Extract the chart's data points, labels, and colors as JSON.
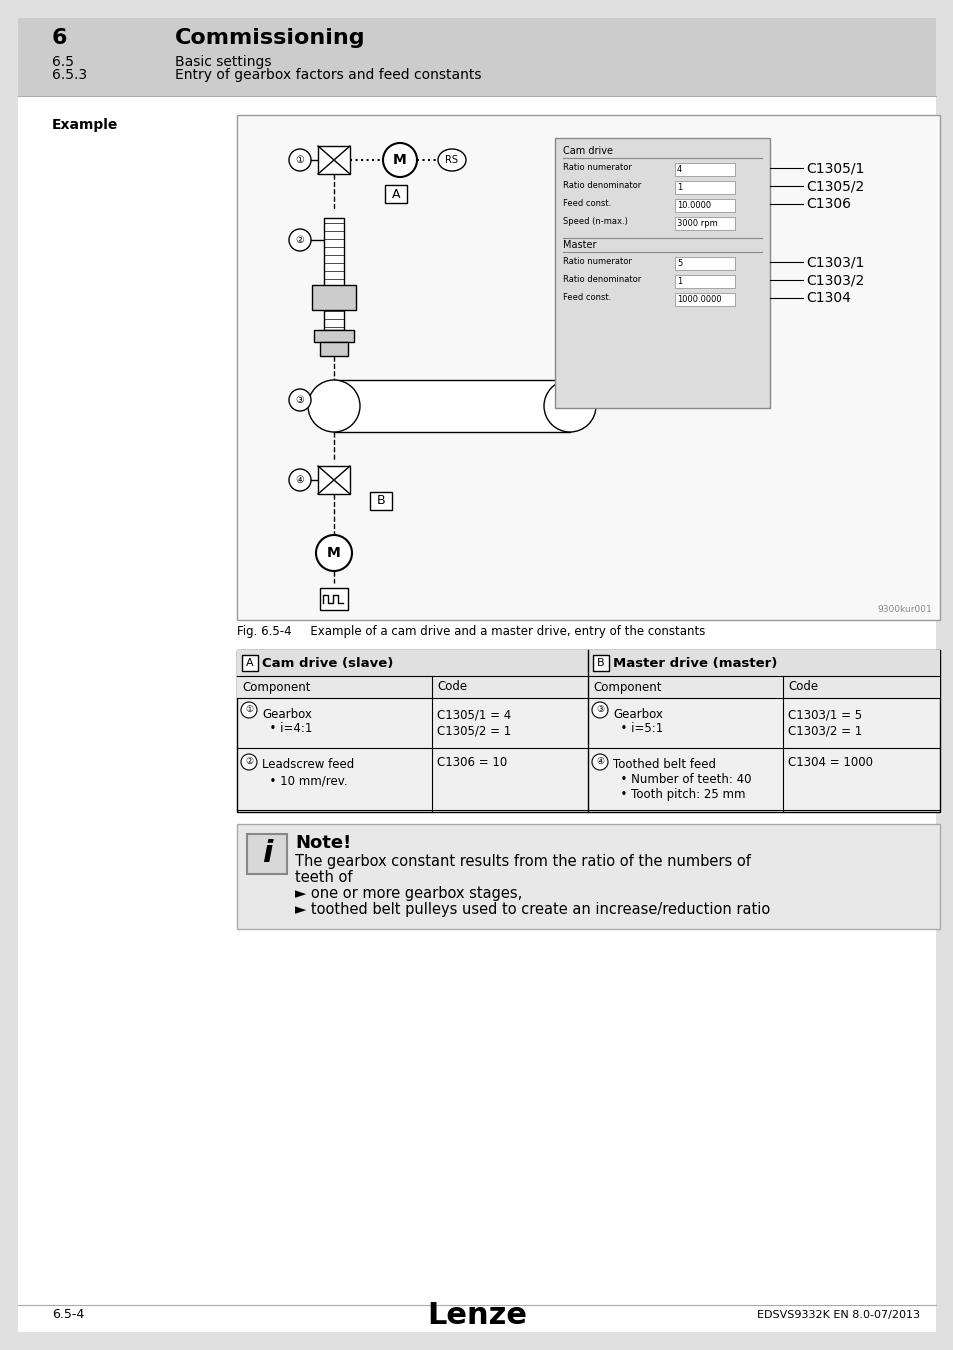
{
  "page_bg": "#e0e0e0",
  "content_bg": "#ffffff",
  "header_bg": "#cccccc",
  "title_section": "6",
  "title_bold": "Commissioning",
  "subtitle1_num": "6.5",
  "subtitle1": "Basic settings",
  "subtitle2_num": "6.5.3",
  "subtitle2": "Entry of gearbox factors and feed constants",
  "example_label": "Example",
  "fig_caption": "Fig. 6.5-4     Example of a cam drive and a master drive, entry of the constants",
  "note_title": "Note!",
  "note_text1": "The gearbox constant results from the ratio of the numbers of",
  "note_text2": "teeth of",
  "note_bullet1": "► one or more gearbox stages,",
  "note_bullet2": "► toothed belt pulleys used to create an increase/reduction ratio",
  "table_header_a": "Cam drive (slave)",
  "table_header_b": "Master drive (master)",
  "table_col1": "Component",
  "table_col2": "Code",
  "table_col3": "Component",
  "table_col4": "Code",
  "footer_left": "6.5-4",
  "footer_center": "Lenze",
  "footer_right": "EDSVS9332K EN 8.0-07/2013",
  "watermark": "9300kur001"
}
